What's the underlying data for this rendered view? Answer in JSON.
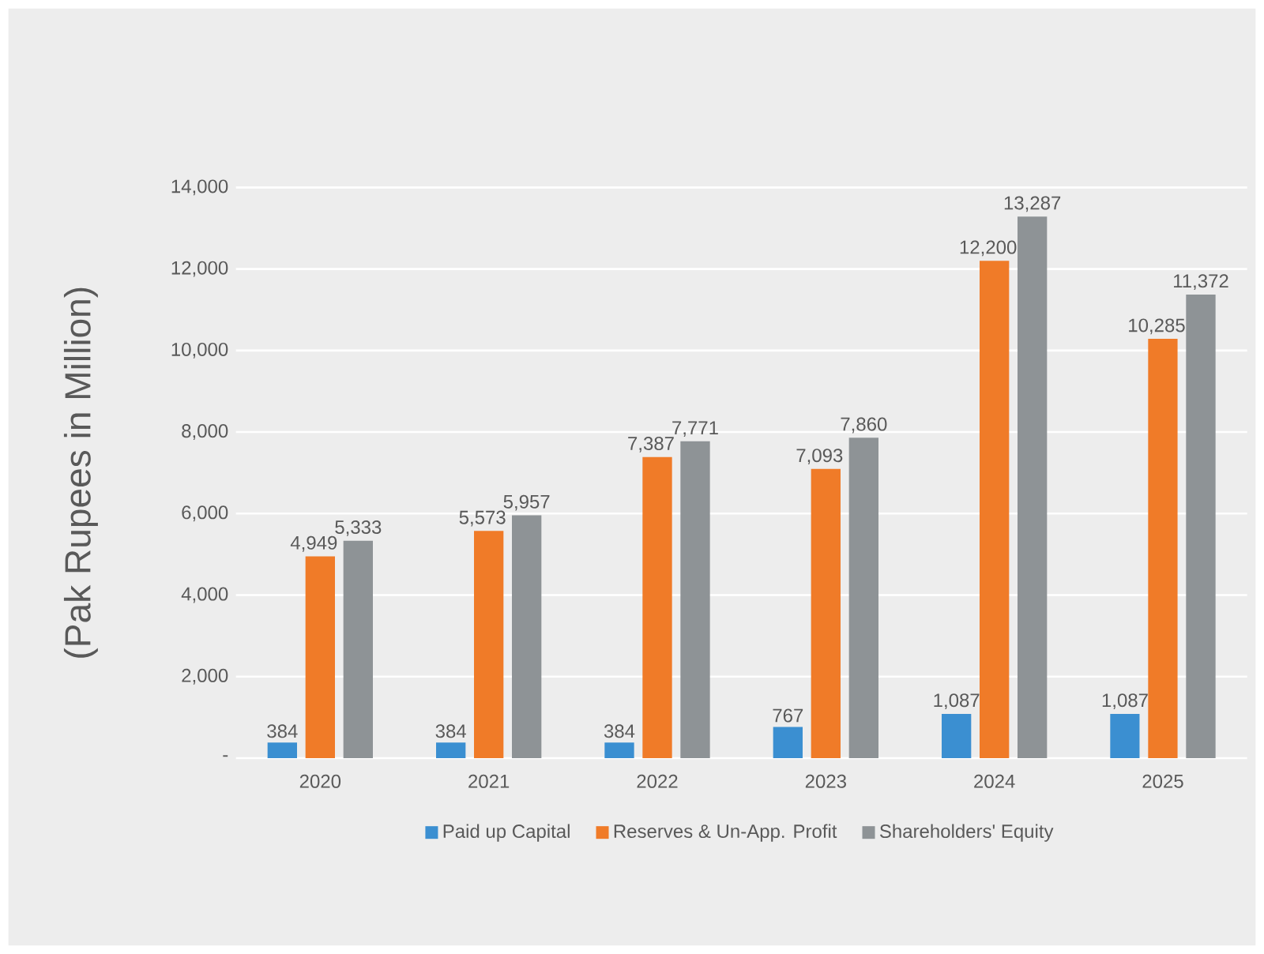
{
  "chart_data": {
    "type": "bar",
    "ylabel": "(Pak Rupees in Million)",
    "categories": [
      "2020",
      "2021",
      "2022",
      "2023",
      "2024",
      "2025"
    ],
    "series": [
      {
        "name": "Paid up Capital",
        "color": "#3b8fd1",
        "values": [
          384,
          384,
          384,
          767,
          1087,
          1087
        ],
        "value_labels": [
          "384",
          "384",
          "384",
          "767",
          "1,087",
          "1,087"
        ]
      },
      {
        "name": "Reserves & Un-App. Profit",
        "color": "#f07b28",
        "values": [
          4949,
          5573,
          7387,
          7093,
          12200,
          10285
        ],
        "value_labels": [
          "4,949",
          "5,573",
          "7,387",
          "7,093",
          "12,200",
          "10,285"
        ]
      },
      {
        "name": "Shareholders' Equity",
        "color": "#8e9396",
        "values": [
          5333,
          5957,
          7771,
          7860,
          13287,
          11372
        ],
        "value_labels": [
          "5,333",
          "5,957",
          "7,771",
          "7,860",
          "13,287",
          "11,372"
        ]
      }
    ],
    "ylim": [
      0,
      14000
    ],
    "yticks": [
      {
        "value": 0,
        "label": "-"
      },
      {
        "value": 2000,
        "label": "2,000"
      },
      {
        "value": 4000,
        "label": "4,000"
      },
      {
        "value": 6000,
        "label": "6,000"
      },
      {
        "value": 8000,
        "label": "8,000"
      },
      {
        "value": 10000,
        "label": "10,000"
      },
      {
        "value": 12000,
        "label": "12,000"
      },
      {
        "value": 14000,
        "label": "14,000"
      }
    ],
    "grid": "y",
    "legend": "bottom"
  }
}
